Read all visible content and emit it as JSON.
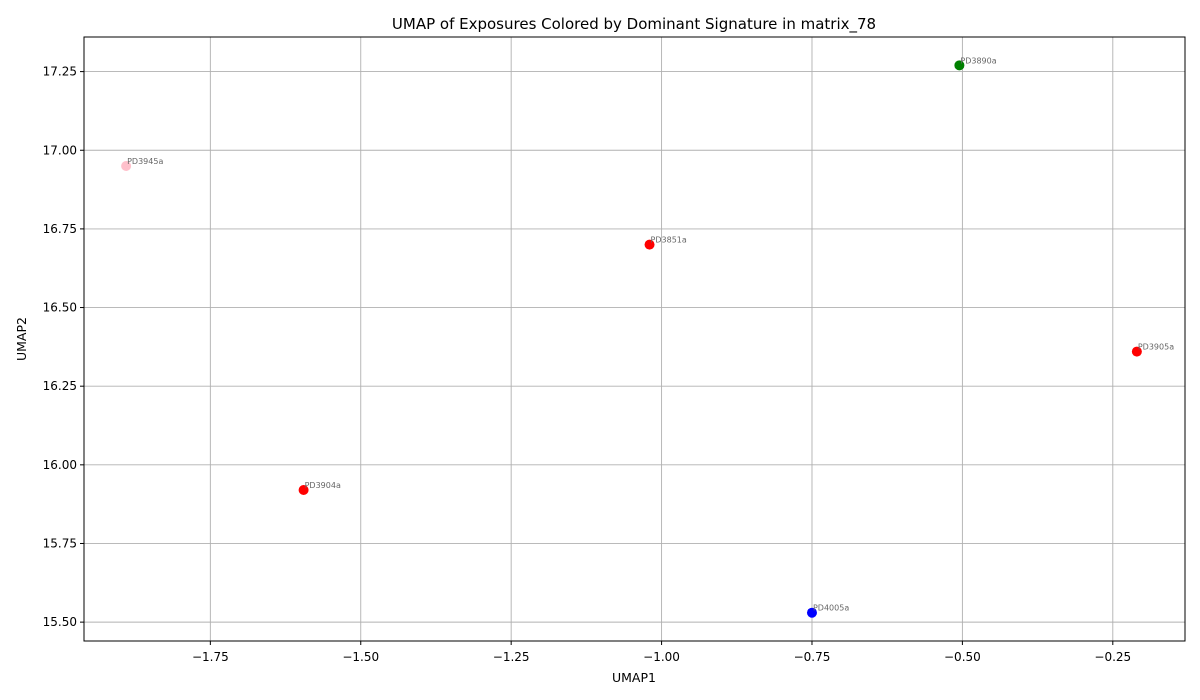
{
  "chart_data": {
    "type": "scatter",
    "title": "UMAP of Exposures Colored by Dominant Signature in matrix_78",
    "xlabel": "UMAP1",
    "ylabel": "UMAP2",
    "xlim": [
      -1.96,
      -0.13
    ],
    "ylim": [
      15.44,
      17.36
    ],
    "grid": true,
    "xticks": [
      -1.75,
      -1.5,
      -1.25,
      -1.0,
      -0.75,
      -0.5,
      -0.25
    ],
    "xtick_labels": [
      "−1.75",
      "−1.50",
      "−1.25",
      "−1.00",
      "−0.75",
      "−0.50",
      "−0.25"
    ],
    "yticks": [
      15.5,
      15.75,
      16.0,
      16.25,
      16.5,
      16.75,
      17.0,
      17.25
    ],
    "ytick_labels": [
      "15.50",
      "15.75",
      "16.00",
      "16.25",
      "16.50",
      "16.75",
      "17.00",
      "17.25"
    ],
    "points": [
      {
        "label": "PD3890a",
        "x": -0.505,
        "y": 17.27,
        "color": "#008000"
      },
      {
        "label": "PD3945a",
        "x": -1.89,
        "y": 16.95,
        "color": "#ffc0cb"
      },
      {
        "label": "PD3851a",
        "x": -1.02,
        "y": 16.7,
        "color": "#ff0000"
      },
      {
        "label": "PD3905a",
        "x": -0.21,
        "y": 16.36,
        "color": "#ff0000"
      },
      {
        "label": "PD3904a",
        "x": -1.595,
        "y": 15.92,
        "color": "#ff0000"
      },
      {
        "label": "PD4005a",
        "x": -0.75,
        "y": 15.53,
        "color": "#0000ff"
      }
    ]
  }
}
